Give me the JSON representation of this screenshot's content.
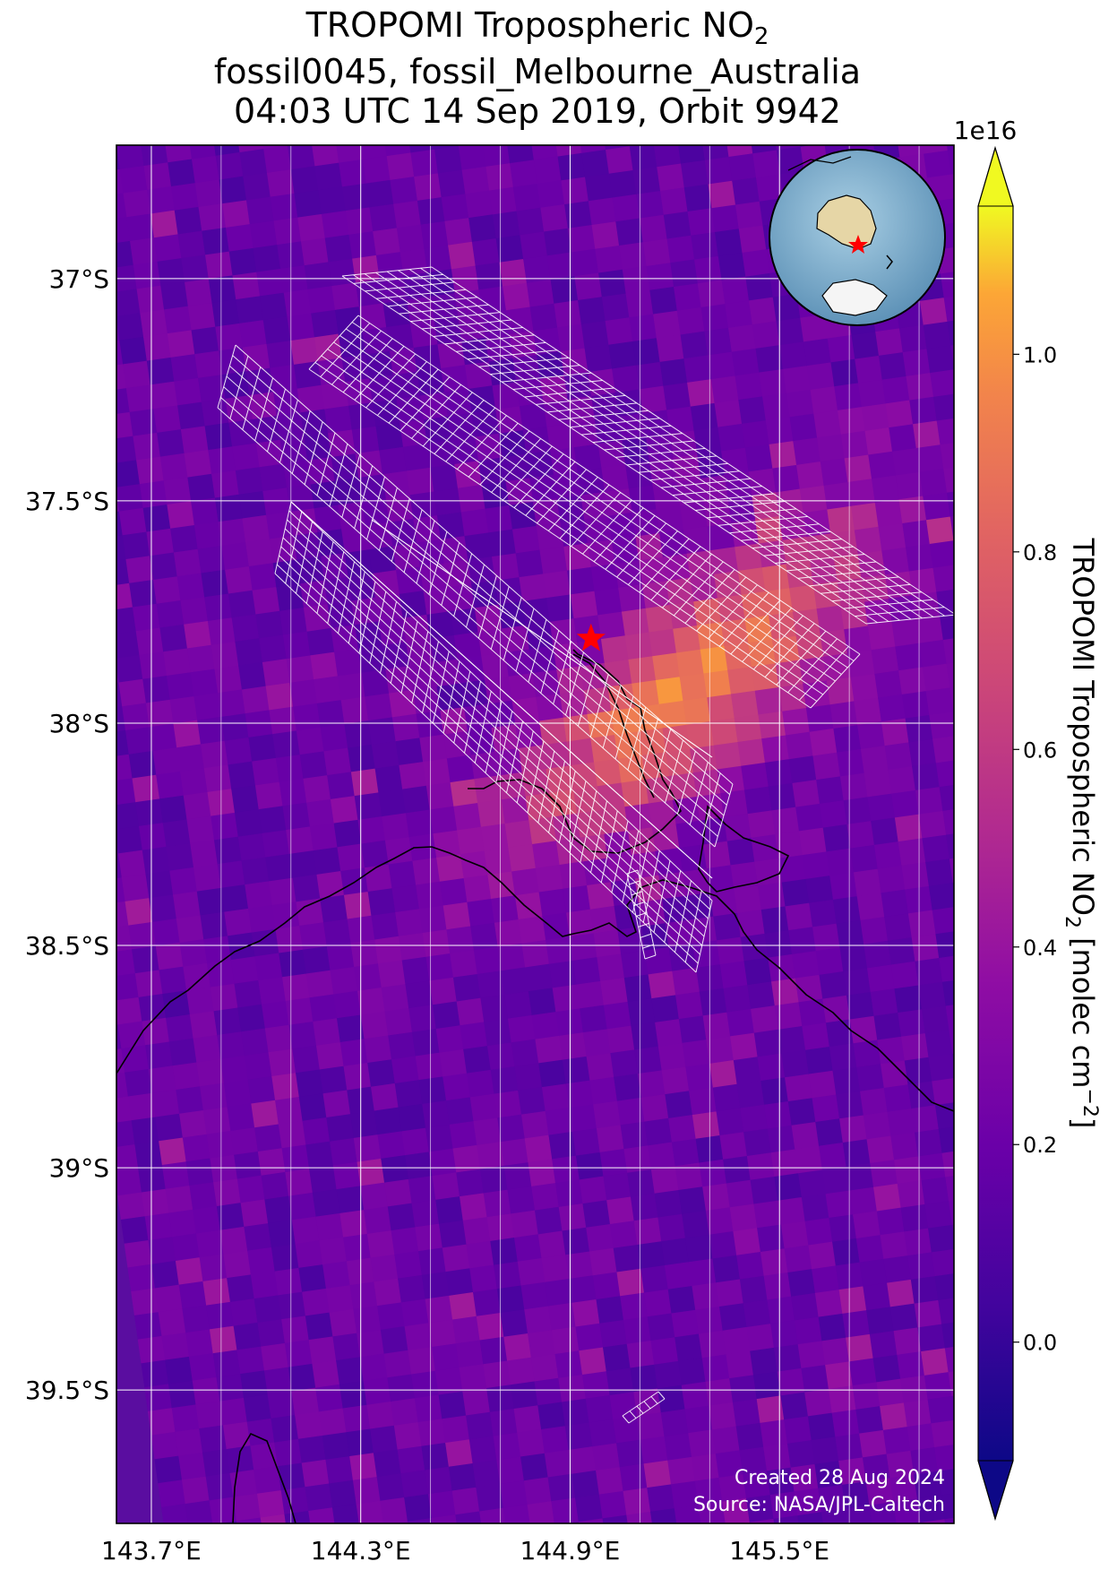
{
  "title": {
    "line1": "TROPOMI Tropospheric NO",
    "line1_sub": "2",
    "line2": "fossil0045, fossil_Melbourne_Australia",
    "line3": "04:03 UTC 14 Sep 2019, Orbit 9942"
  },
  "map": {
    "type": "heatmap",
    "lon_range": [
      143.6,
      146.0
    ],
    "lat_range": [
      -39.8,
      -36.7
    ],
    "lon_ticks": [
      143.7,
      144.3,
      144.9,
      145.5
    ],
    "lon_tick_labels": [
      "143.7°E",
      "144.3°E",
      "144.9°E",
      "145.5°E"
    ],
    "lat_ticks": [
      -37.0,
      -37.5,
      -38.0,
      -38.5,
      -39.0,
      -39.5
    ],
    "lat_tick_labels": [
      "37°S",
      "37.5°S",
      "38°S",
      "38.5°S",
      "39°S",
      "39.5°S"
    ],
    "gridlines": true,
    "target_marker": {
      "lon": 144.96,
      "lat": -37.81,
      "symbol": "star",
      "color": "#ff0000"
    },
    "plume_center": {
      "lon": 145.2,
      "lat": -37.9
    },
    "grid_color": "#ffffff",
    "coast_color": "#000000"
  },
  "colorbar": {
    "label_main": "TROPOMI Tropospheric NO",
    "label_sub": "2",
    "label_unit": " [molec cm",
    "label_exp": "−2",
    "label_close": "]",
    "multiplier": "1e16",
    "range": [
      -0.12,
      1.15
    ],
    "ticks": [
      0.0,
      0.2,
      0.4,
      0.6,
      0.8,
      1.0
    ],
    "tick_labels": [
      "0.0",
      "0.2",
      "0.4",
      "0.6",
      "0.8",
      "1.0"
    ],
    "colormap": "plasma",
    "extend": "both"
  },
  "inset": {
    "description": "globe-locator",
    "marker_color": "#ff0000"
  },
  "credits": {
    "created": "Created 28 Aug 2024",
    "source": "Source: NASA/JPL-Caltech"
  }
}
